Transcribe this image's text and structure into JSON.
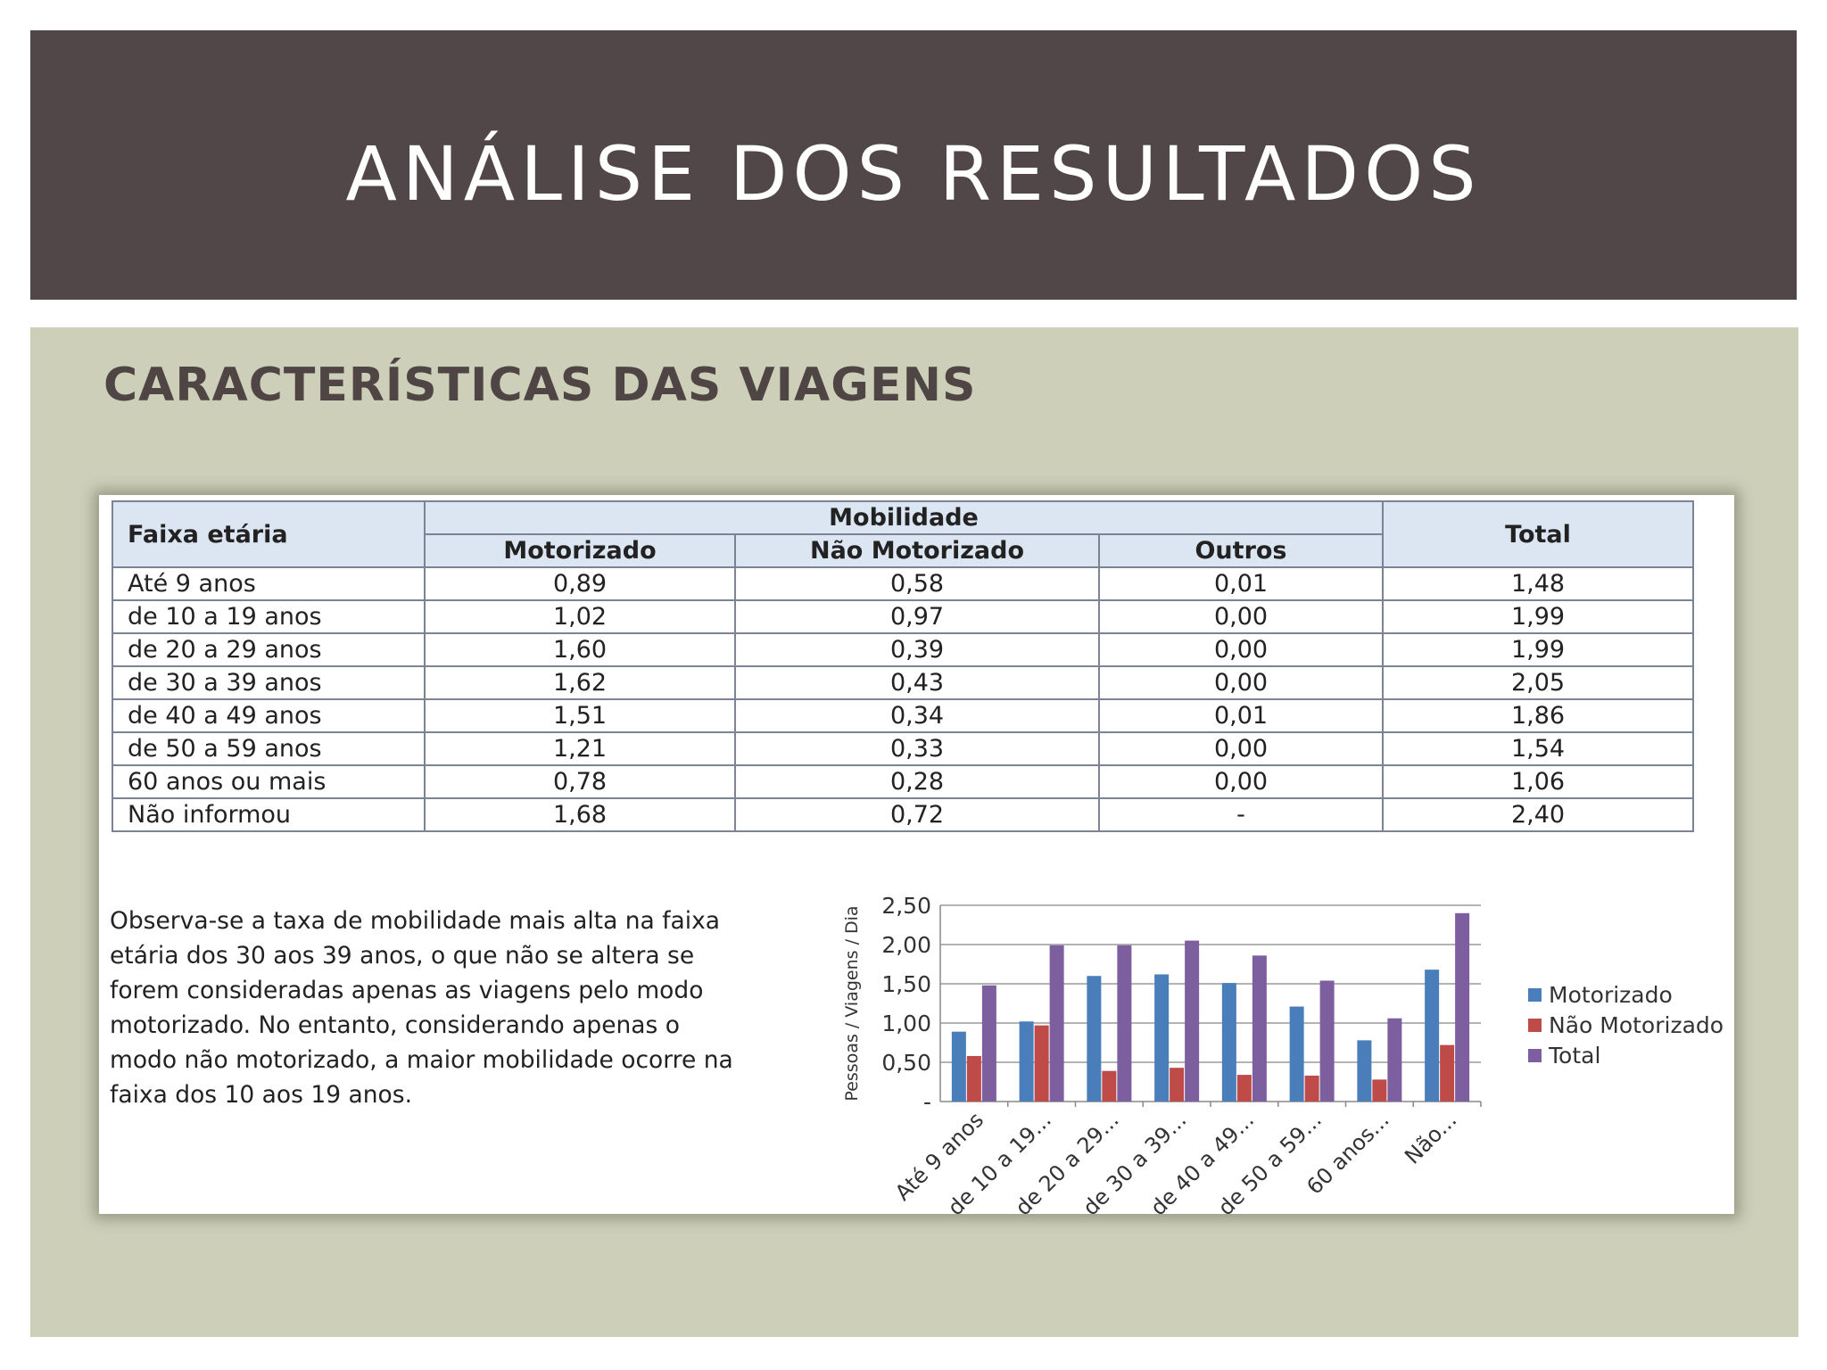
{
  "header": {
    "title": "ANÁLISE DOS RESULTADOS"
  },
  "section": {
    "subtitle": "CARACTERÍSTICAS DAS VIAGENS"
  },
  "table": {
    "col_group": "Mobilidade",
    "headers": [
      "Faixa etária",
      "Motorizado",
      "Não Motorizado",
      "Outros",
      "Total"
    ],
    "rows": [
      [
        "Até 9 anos",
        "0,89",
        "0,58",
        "0,01",
        "1,48"
      ],
      [
        "de 10 a 19 anos",
        "1,02",
        "0,97",
        "0,00",
        "1,99"
      ],
      [
        "de 20 a 29 anos",
        "1,60",
        "0,39",
        "0,00",
        "1,99"
      ],
      [
        "de 30 a 39 anos",
        "1,62",
        "0,43",
        "0,00",
        "2,05"
      ],
      [
        "de 40 a 49 anos",
        "1,51",
        "0,34",
        "0,01",
        "1,86"
      ],
      [
        "de 50 a 59 anos",
        "1,21",
        "0,33",
        "0,00",
        "1,54"
      ],
      [
        "60 anos ou mais",
        "0,78",
        "0,28",
        "0,00",
        "1,06"
      ],
      [
        "Não informou",
        "1,68",
        "0,72",
        "-",
        "2,40"
      ]
    ]
  },
  "note": "Observa-se a taxa de mobilidade mais alta na faixa etária dos 30 aos 39 anos, o que não se altera se forem consideradas apenas as viagens pelo modo motorizado. No entanto, considerando apenas o modo não motorizado, a maior mobilidade ocorre na faixa dos 10 aos 19 anos.",
  "note_lines": [
    "Observa-se a taxa de mobilidade mais alta na faixa",
    "etária dos 30 aos 39 anos, o que não se altera se",
    "forem consideradas apenas as viagens pelo modo",
    "motorizado. No entanto, considerando apenas o",
    "modo não motorizado, a maior mobilidade ocorre na",
    "faixa dos 10 aos 19 anos."
  ],
  "chart_data": {
    "type": "bar",
    "categories": [
      "Até 9 anos",
      "de 10 a 19...",
      "de 20 a 29...",
      "de 30 a 39...",
      "de 40 a 49...",
      "de 50 a 59...",
      "60 anos...",
      "Não..."
    ],
    "series": [
      {
        "name": "Motorizado",
        "color": "#4a7ebb",
        "values": [
          0.89,
          1.02,
          1.6,
          1.62,
          1.51,
          1.21,
          0.78,
          1.68
        ]
      },
      {
        "name": "Não Motorizado",
        "color": "#be4b48",
        "values": [
          0.58,
          0.97,
          0.39,
          0.43,
          0.34,
          0.33,
          0.28,
          0.72
        ]
      },
      {
        "name": "Total",
        "color": "#7d5fa0",
        "values": [
          1.48,
          1.99,
          1.99,
          2.05,
          1.86,
          1.54,
          1.06,
          2.4
        ]
      }
    ],
    "ylabel": "Pessoas / Viagens / Dia",
    "ylim": [
      0,
      2.5
    ],
    "yticks": [
      0,
      0.5,
      1.0,
      1.5,
      2.0,
      2.5
    ],
    "ytick_labels": [
      "-",
      "0,50",
      "1,00",
      "1,50",
      "2,00",
      "2,50"
    ],
    "grid": true,
    "legend": "right"
  }
}
